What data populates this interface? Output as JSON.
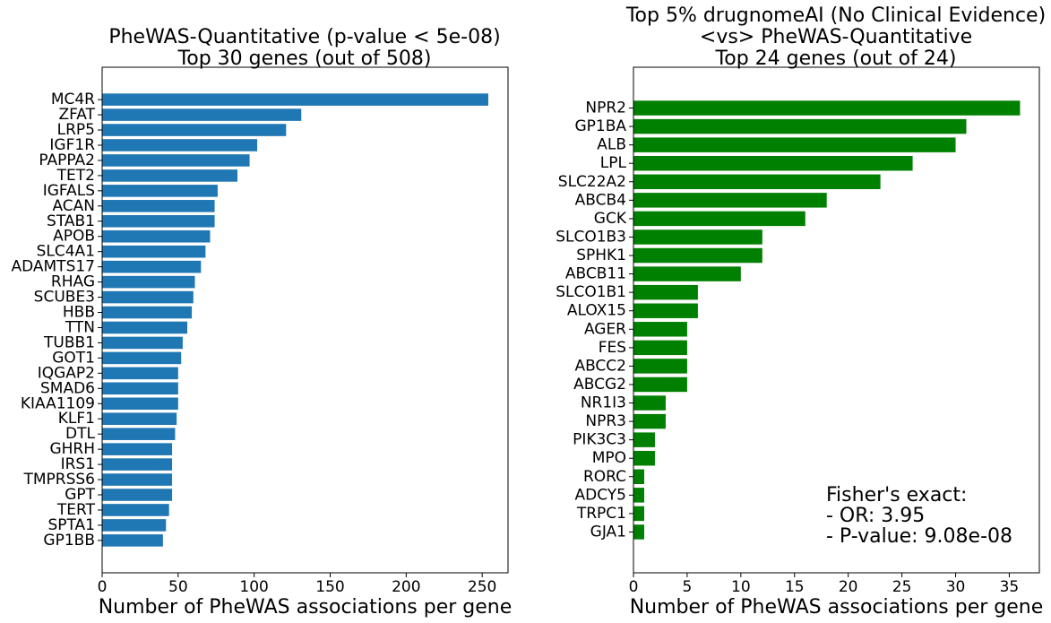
{
  "chart_data": [
    {
      "type": "bar",
      "orientation": "horizontal",
      "title": [
        "PheWAS-Quantitative (p-value < 5e-08)",
        "Top 30 genes (out of 508)"
      ],
      "xlabel": "Number of PheWAS associations per gene",
      "ylabel": "",
      "xlim": [
        0,
        267
      ],
      "xticks": [
        0,
        50,
        100,
        150,
        200,
        250
      ],
      "color": "#1f77b4",
      "grid": false,
      "categories": [
        "MC4R",
        "ZFAT",
        "LRP5",
        "IGF1R",
        "PAPPA2",
        "TET2",
        "IGFALS",
        "ACAN",
        "STAB1",
        "APOB",
        "SLC4A1",
        "ADAMTS17",
        "RHAG",
        "SCUBE3",
        "HBB",
        "TTN",
        "TUBB1",
        "GOT1",
        "IQGAP2",
        "SMAD6",
        "KIAA1109",
        "KLF1",
        "DTL",
        "GHRH",
        "IRS1",
        "TMPRSS6",
        "GPT",
        "TERT",
        "SPTA1",
        "GP1BB"
      ],
      "values": [
        254,
        131,
        121,
        102,
        97,
        89,
        76,
        74,
        74,
        71,
        68,
        65,
        61,
        60,
        59,
        56,
        53,
        52,
        50,
        50,
        50,
        49,
        48,
        46,
        46,
        46,
        46,
        44,
        42,
        40
      ]
    },
    {
      "type": "bar",
      "orientation": "horizontal",
      "title": [
        "Top 5% drugnomeAI (No Clinical Evidence)",
        "<vs>  PheWAS-Quantitative",
        "Top 24 genes (out of 24)"
      ],
      "xlabel": "Number of PheWAS associations per gene",
      "ylabel": "",
      "xlim": [
        0,
        37.8
      ],
      "xticks": [
        0,
        5,
        10,
        15,
        20,
        25,
        30,
        35
      ],
      "color": "#008000",
      "grid": false,
      "categories": [
        "NPR2",
        "GP1BA",
        "ALB",
        "LPL",
        "SLC22A2",
        "ABCB4",
        "GCK",
        "SLCO1B3",
        "SPHK1",
        "ABCB11",
        "SLCO1B1",
        "ALOX15",
        "AGER",
        "FES",
        "ABCC2",
        "ABCG2",
        "NR1I3",
        "NPR3",
        "PIK3C3",
        "MPO",
        "RORC",
        "ADCY5",
        "TRPC1",
        "GJA1"
      ],
      "values": [
        36,
        31,
        30,
        26,
        23,
        18,
        16,
        12,
        12,
        10,
        6,
        6,
        5,
        5,
        5,
        5,
        3,
        3,
        2,
        2,
        1,
        1,
        1,
        1
      ],
      "annotation": [
        "Fisher's exact:",
        "- OR: 3.95",
        "- P-value: 9.08e-08"
      ]
    }
  ]
}
